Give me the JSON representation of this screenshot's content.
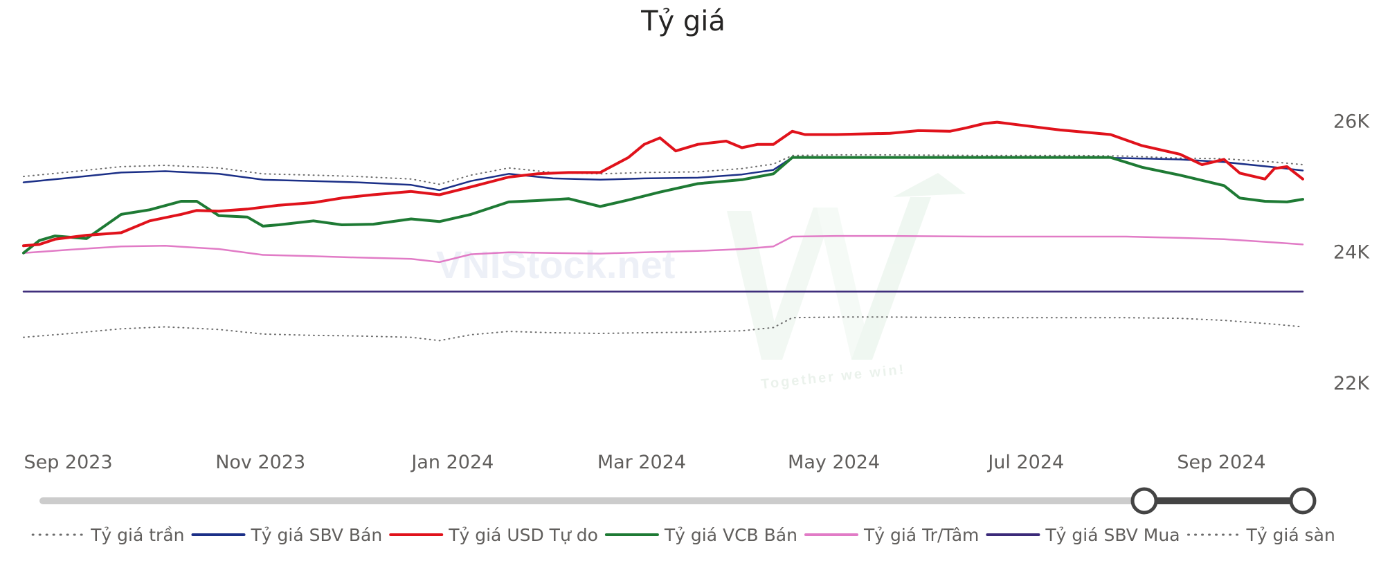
{
  "title": "Tỷ giá",
  "watermark": {
    "brand": "VNIStock.net",
    "tagline": "Together we win!"
  },
  "slider": {
    "range_start": 0.8742,
    "range_end": 1.0
  },
  "chart_data": {
    "type": "line",
    "title": "Tỷ giá",
    "xlabel": "",
    "ylabel": "",
    "ylim": [
      21300,
      26800
    ],
    "y_ticks": [
      {
        "value": 22000,
        "label": "22K"
      },
      {
        "value": 24000,
        "label": "24K"
      },
      {
        "value": 26000,
        "label": "26K"
      }
    ],
    "x_range": [
      "2023-08-31",
      "2024-10-10"
    ],
    "x_ticks": [
      {
        "date": "2023-09-01",
        "label": "Sep 2023"
      },
      {
        "date": "2023-11-01",
        "label": "Nov 2023"
      },
      {
        "date": "2024-01-01",
        "label": "Jan 2024"
      },
      {
        "date": "2024-03-01",
        "label": "Mar 2024"
      },
      {
        "date": "2024-05-01",
        "label": "May 2024"
      },
      {
        "date": "2024-07-01",
        "label": "Jul 2024"
      },
      {
        "date": "2024-09-01",
        "label": "Sep 2024"
      }
    ],
    "grid": false,
    "legend_position": "bottom",
    "series": [
      {
        "name": "Tỷ giá trần",
        "color": "#6b6b6b",
        "style": "dotted",
        "width": 2,
        "points": [
          [
            "2023-08-31",
            25160
          ],
          [
            "2023-09-15",
            25230
          ],
          [
            "2023-10-01",
            25310
          ],
          [
            "2023-10-15",
            25330
          ],
          [
            "2023-11-01",
            25290
          ],
          [
            "2023-11-15",
            25200
          ],
          [
            "2023-12-01",
            25180
          ],
          [
            "2023-12-15",
            25160
          ],
          [
            "2024-01-01",
            25120
          ],
          [
            "2024-01-10",
            25040
          ],
          [
            "2024-01-20",
            25180
          ],
          [
            "2024-02-01",
            25290
          ],
          [
            "2024-02-15",
            25220
          ],
          [
            "2024-03-01",
            25200
          ],
          [
            "2024-03-15",
            25220
          ],
          [
            "2024-04-01",
            25230
          ],
          [
            "2024-04-15",
            25280
          ],
          [
            "2024-04-25",
            25350
          ],
          [
            "2024-05-01",
            25480
          ],
          [
            "2024-05-15",
            25490
          ],
          [
            "2024-06-01",
            25490
          ],
          [
            "2024-07-01",
            25480
          ],
          [
            "2024-08-01",
            25480
          ],
          [
            "2024-08-15",
            25470
          ],
          [
            "2024-09-01",
            25440
          ],
          [
            "2024-09-15",
            25430
          ],
          [
            "2024-10-01",
            25380
          ],
          [
            "2024-10-10",
            25340
          ]
        ]
      },
      {
        "name": "Tỷ giá SBV Bán",
        "color": "#1b2f87",
        "style": "solid",
        "width": 2.5,
        "points": [
          [
            "2023-08-31",
            25070
          ],
          [
            "2023-09-15",
            25140
          ],
          [
            "2023-10-01",
            25220
          ],
          [
            "2023-10-15",
            25240
          ],
          [
            "2023-11-01",
            25200
          ],
          [
            "2023-11-15",
            25110
          ],
          [
            "2023-12-01",
            25090
          ],
          [
            "2023-12-15",
            25070
          ],
          [
            "2024-01-01",
            25030
          ],
          [
            "2024-01-10",
            24950
          ],
          [
            "2024-01-20",
            25090
          ],
          [
            "2024-02-01",
            25200
          ],
          [
            "2024-02-15",
            25130
          ],
          [
            "2024-03-01",
            25110
          ],
          [
            "2024-03-15",
            25130
          ],
          [
            "2024-04-01",
            25140
          ],
          [
            "2024-04-15",
            25190
          ],
          [
            "2024-04-25",
            25260
          ],
          [
            "2024-05-01",
            25450
          ],
          [
            "2024-05-15",
            25450
          ],
          [
            "2024-06-01",
            25450
          ],
          [
            "2024-07-01",
            25450
          ],
          [
            "2024-08-01",
            25450
          ],
          [
            "2024-08-15",
            25440
          ],
          [
            "2024-09-01",
            25420
          ],
          [
            "2024-09-15",
            25380
          ],
          [
            "2024-10-01",
            25300
          ],
          [
            "2024-10-10",
            25250
          ]
        ]
      },
      {
        "name": "Tỷ giá USD Tự do",
        "color": "#e0121b",
        "style": "solid",
        "width": 4,
        "points": [
          [
            "2023-08-31",
            24100
          ],
          [
            "2023-09-05",
            24120
          ],
          [
            "2023-09-10",
            24200
          ],
          [
            "2023-09-20",
            24260
          ],
          [
            "2023-10-01",
            24300
          ],
          [
            "2023-10-10",
            24480
          ],
          [
            "2023-10-20",
            24580
          ],
          [
            "2023-10-25",
            24640
          ],
          [
            "2023-11-01",
            24630
          ],
          [
            "2023-11-10",
            24660
          ],
          [
            "2023-11-20",
            24720
          ],
          [
            "2023-12-01",
            24760
          ],
          [
            "2023-12-10",
            24830
          ],
          [
            "2023-12-20",
            24880
          ],
          [
            "2024-01-01",
            24930
          ],
          [
            "2024-01-10",
            24880
          ],
          [
            "2024-01-20",
            25000
          ],
          [
            "2024-02-01",
            25150
          ],
          [
            "2024-02-10",
            25200
          ],
          [
            "2024-02-20",
            25220
          ],
          [
            "2024-03-01",
            25220
          ],
          [
            "2024-03-10",
            25450
          ],
          [
            "2024-03-15",
            25650
          ],
          [
            "2024-03-20",
            25750
          ],
          [
            "2024-03-25",
            25550
          ],
          [
            "2024-04-01",
            25650
          ],
          [
            "2024-04-10",
            25700
          ],
          [
            "2024-04-15",
            25600
          ],
          [
            "2024-04-20",
            25650
          ],
          [
            "2024-04-25",
            25650
          ],
          [
            "2024-05-01",
            25850
          ],
          [
            "2024-05-05",
            25800
          ],
          [
            "2024-05-15",
            25800
          ],
          [
            "2024-06-01",
            25820
          ],
          [
            "2024-06-10",
            25860
          ],
          [
            "2024-06-20",
            25850
          ],
          [
            "2024-06-25",
            25900
          ],
          [
            "2024-07-01",
            25970
          ],
          [
            "2024-07-05",
            25990
          ],
          [
            "2024-07-15",
            25930
          ],
          [
            "2024-07-25",
            25870
          ],
          [
            "2024-08-01",
            25840
          ],
          [
            "2024-08-10",
            25800
          ],
          [
            "2024-08-20",
            25630
          ],
          [
            "2024-09-01",
            25500
          ],
          [
            "2024-09-08",
            25340
          ],
          [
            "2024-09-15",
            25420
          ],
          [
            "2024-09-20",
            25210
          ],
          [
            "2024-09-28",
            25120
          ],
          [
            "2024-10-01",
            25280
          ],
          [
            "2024-10-05",
            25310
          ],
          [
            "2024-10-10",
            25120
          ]
        ]
      },
      {
        "name": "Tỷ giá VCB Bán",
        "color": "#1e7a34",
        "style": "solid",
        "width": 4,
        "points": [
          [
            "2023-08-31",
            23990
          ],
          [
            "2023-09-05",
            24180
          ],
          [
            "2023-09-10",
            24250
          ],
          [
            "2023-09-20",
            24210
          ],
          [
            "2023-10-01",
            24580
          ],
          [
            "2023-10-10",
            24650
          ],
          [
            "2023-10-20",
            24780
          ],
          [
            "2023-10-25",
            24780
          ],
          [
            "2023-11-01",
            24560
          ],
          [
            "2023-11-10",
            24540
          ],
          [
            "2023-11-15",
            24400
          ],
          [
            "2023-11-20",
            24420
          ],
          [
            "2023-12-01",
            24480
          ],
          [
            "2023-12-10",
            24420
          ],
          [
            "2023-12-20",
            24430
          ],
          [
            "2024-01-01",
            24510
          ],
          [
            "2024-01-10",
            24470
          ],
          [
            "2024-01-20",
            24580
          ],
          [
            "2024-02-01",
            24770
          ],
          [
            "2024-02-10",
            24790
          ],
          [
            "2024-02-20",
            24820
          ],
          [
            "2024-03-01",
            24700
          ],
          [
            "2024-03-10",
            24800
          ],
          [
            "2024-03-20",
            24920
          ],
          [
            "2024-04-01",
            25050
          ],
          [
            "2024-04-15",
            25110
          ],
          [
            "2024-04-25",
            25200
          ],
          [
            "2024-05-01",
            25450
          ],
          [
            "2024-05-15",
            25450
          ],
          [
            "2024-06-01",
            25450
          ],
          [
            "2024-07-01",
            25450
          ],
          [
            "2024-08-01",
            25450
          ],
          [
            "2024-08-10",
            25450
          ],
          [
            "2024-08-20",
            25300
          ],
          [
            "2024-09-01",
            25180
          ],
          [
            "2024-09-15",
            25020
          ],
          [
            "2024-09-20",
            24830
          ],
          [
            "2024-09-28",
            24780
          ],
          [
            "2024-10-05",
            24770
          ],
          [
            "2024-10-10",
            24810
          ]
        ]
      },
      {
        "name": "Tỷ giá Tr/Tâm",
        "color": "#e17bc6",
        "style": "solid",
        "width": 2.5,
        "points": [
          [
            "2023-08-31",
            23990
          ],
          [
            "2023-09-15",
            24040
          ],
          [
            "2023-10-01",
            24090
          ],
          [
            "2023-10-15",
            24100
          ],
          [
            "2023-11-01",
            24050
          ],
          [
            "2023-11-15",
            23960
          ],
          [
            "2023-12-01",
            23940
          ],
          [
            "2023-12-15",
            23920
          ],
          [
            "2024-01-01",
            23900
          ],
          [
            "2024-01-10",
            23850
          ],
          [
            "2024-01-20",
            23970
          ],
          [
            "2024-02-01",
            24000
          ],
          [
            "2024-02-15",
            23990
          ],
          [
            "2024-03-01",
            23980
          ],
          [
            "2024-03-15",
            24000
          ],
          [
            "2024-04-01",
            24020
          ],
          [
            "2024-04-15",
            24050
          ],
          [
            "2024-04-25",
            24090
          ],
          [
            "2024-05-01",
            24240
          ],
          [
            "2024-05-15",
            24250
          ],
          [
            "2024-06-01",
            24250
          ],
          [
            "2024-07-01",
            24240
          ],
          [
            "2024-08-01",
            24240
          ],
          [
            "2024-08-15",
            24240
          ],
          [
            "2024-09-01",
            24220
          ],
          [
            "2024-09-15",
            24200
          ],
          [
            "2024-10-01",
            24150
          ],
          [
            "2024-10-10",
            24120
          ]
        ]
      },
      {
        "name": "Tỷ giá SBV Mua",
        "color": "#3b2a79",
        "style": "solid",
        "width": 2.5,
        "points": [
          [
            "2023-08-31",
            23400
          ],
          [
            "2024-10-10",
            23400
          ]
        ]
      },
      {
        "name": "Tỷ giá sàn",
        "color": "#6b6b6b",
        "style": "dotted",
        "width": 2,
        "points": [
          [
            "2023-08-31",
            22700
          ],
          [
            "2023-09-15",
            22760
          ],
          [
            "2023-10-01",
            22830
          ],
          [
            "2023-10-15",
            22860
          ],
          [
            "2023-11-01",
            22820
          ],
          [
            "2023-11-15",
            22750
          ],
          [
            "2023-12-01",
            22730
          ],
          [
            "2023-12-15",
            22720
          ],
          [
            "2024-01-01",
            22700
          ],
          [
            "2024-01-10",
            22650
          ],
          [
            "2024-01-20",
            22740
          ],
          [
            "2024-02-01",
            22790
          ],
          [
            "2024-02-15",
            22770
          ],
          [
            "2024-03-01",
            22760
          ],
          [
            "2024-03-15",
            22770
          ],
          [
            "2024-04-01",
            22780
          ],
          [
            "2024-04-15",
            22800
          ],
          [
            "2024-04-25",
            22850
          ],
          [
            "2024-05-01",
            23000
          ],
          [
            "2024-05-15",
            23010
          ],
          [
            "2024-06-01",
            23010
          ],
          [
            "2024-07-01",
            23000
          ],
          [
            "2024-08-01",
            23000
          ],
          [
            "2024-08-15",
            23000
          ],
          [
            "2024-09-01",
            22990
          ],
          [
            "2024-09-15",
            22960
          ],
          [
            "2024-10-01",
            22900
          ],
          [
            "2024-10-10",
            22860
          ]
        ]
      }
    ]
  }
}
